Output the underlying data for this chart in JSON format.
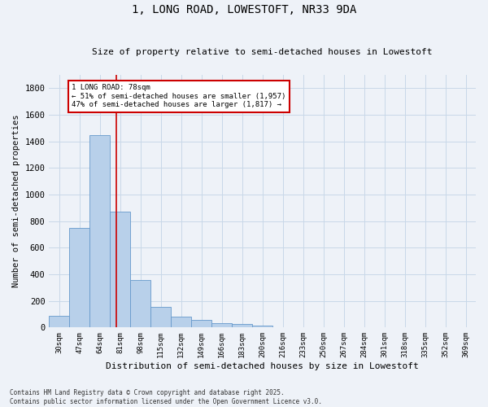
{
  "title1": "1, LONG ROAD, LOWESTOFT, NR33 9DA",
  "title2": "Size of property relative to semi-detached houses in Lowestoft",
  "xlabel": "Distribution of semi-detached houses by size in Lowestoft",
  "ylabel": "Number of semi-detached properties",
  "categories": [
    "30sqm",
    "47sqm",
    "64sqm",
    "81sqm",
    "98sqm",
    "115sqm",
    "132sqm",
    "149sqm",
    "166sqm",
    "183sqm",
    "200sqm",
    "216sqm",
    "233sqm",
    "250sqm",
    "267sqm",
    "284sqm",
    "301sqm",
    "318sqm",
    "335sqm",
    "352sqm",
    "369sqm"
  ],
  "values": [
    90,
    750,
    1450,
    870,
    355,
    155,
    80,
    55,
    35,
    25,
    15,
    5,
    2,
    0,
    0,
    0,
    0,
    0,
    0,
    0,
    0
  ],
  "bar_color": "#b8d0ea",
  "bar_edge_color": "#6699cc",
  "ylim": [
    0,
    1900
  ],
  "yticks": [
    0,
    200,
    400,
    600,
    800,
    1000,
    1200,
    1400,
    1600,
    1800
  ],
  "red_line_color": "#cc0000",
  "annotation_text": "1 LONG ROAD: 78sqm\n← 51% of semi-detached houses are smaller (1,957)\n47% of semi-detached houses are larger (1,817) →",
  "annotation_box_color": "#cc0000",
  "footer_text": "Contains HM Land Registry data © Crown copyright and database right 2025.\nContains public sector information licensed under the Open Government Licence v3.0.",
  "grid_color": "#c8d8e8",
  "background_color": "#eef2f8"
}
